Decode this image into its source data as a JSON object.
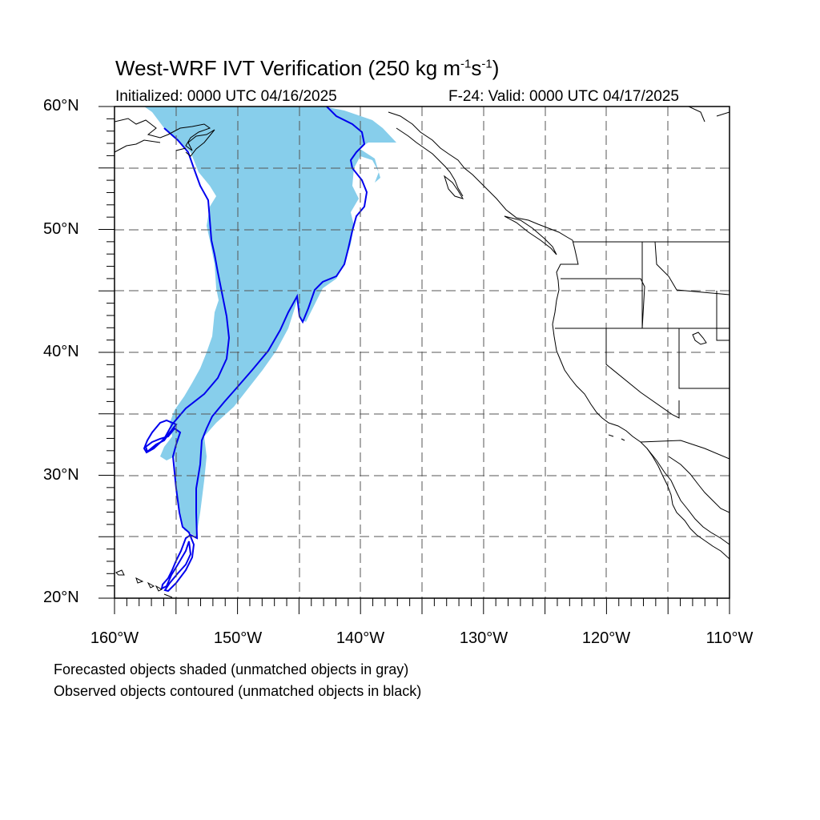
{
  "title": {
    "main": "West-WRF IVT Verification (250 kg m",
    "sup1": "-1",
    "mid": "s",
    "sup2": "-1",
    "end": ")"
  },
  "subtitle_left": "Initialized: 0000 UTC 04/16/2025",
  "subtitle_right": "F-24: Valid: 0000 UTC 04/17/2025",
  "lat_labels": [
    "60°N",
    "50°N",
    "40°N",
    "30°N",
    "20°N"
  ],
  "lon_labels": [
    "160°W",
    "150°W",
    "140°W",
    "130°W",
    "120°W",
    "110°W"
  ],
  "footnote_1": "Forecasted objects shaded (unmatched objects in gray)",
  "footnote_2": "Observed objects contoured (unmatched objects in black)",
  "colors": {
    "forecast_fill": "#87ceeb",
    "observed_contour": "#0000ee",
    "coastline": "#000000",
    "grid": "#555555"
  }
}
